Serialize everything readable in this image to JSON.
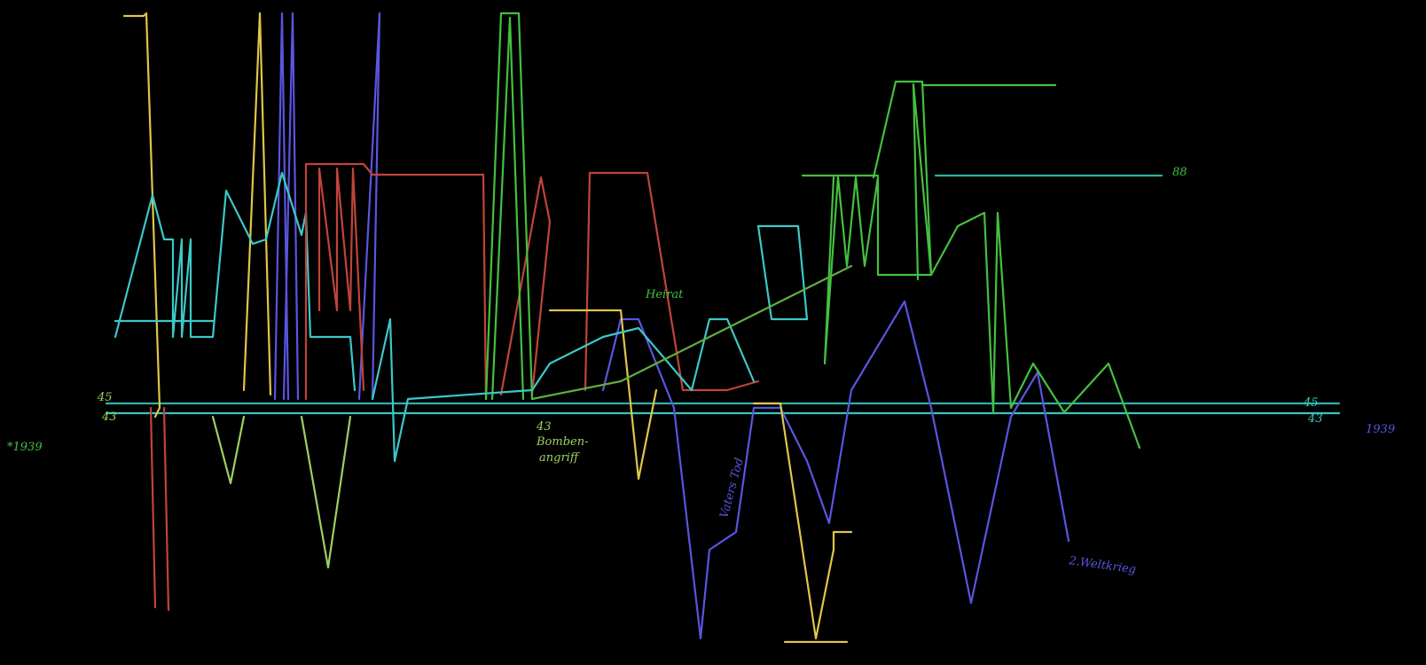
{
  "annotations": {
    "start_year": "*1939",
    "end_year": "1939",
    "left_tick_top": "45",
    "left_tick_bottom": "43",
    "right_tick_top": "45",
    "right_tick_bottom": "43",
    "bomb_year": "43",
    "bomb": "Bomben-",
    "bomb2": "angriff",
    "wedding": "Heirat",
    "year88": "88",
    "war": "2.Weltkrieg",
    "father": "Vaters Tod"
  }
}
